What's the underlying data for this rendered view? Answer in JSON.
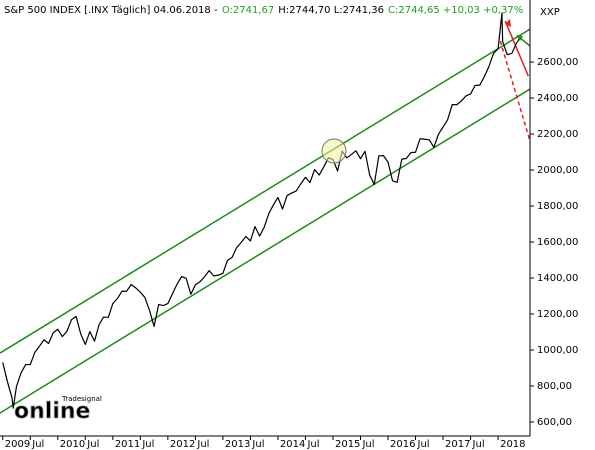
{
  "chart_data": {
    "type": "line",
    "title": "S&P 500 INDEX [.INX Täglich] 04.06.2018 -",
    "quote_parts": [
      {
        "text": "O:2741,67",
        "color": "#22a022"
      },
      {
        "text": "H:2744,70 L:2741,36",
        "color": "#000000"
      },
      {
        "text": "C:2744,65 +10,03 +0,37%",
        "color": "#22a022"
      }
    ],
    "axis_label": "XXP",
    "watermark": {
      "small": "Tradesignal",
      "big": "online"
    },
    "series": [
      {
        "color": "#000000",
        "x": [
          2009.0,
          2009.083,
          2009.167,
          2009.19,
          2009.25,
          2009.333,
          2009.417,
          2009.5,
          2009.583,
          2009.667,
          2009.75,
          2009.833,
          2009.917,
          2010.0,
          2010.083,
          2010.167,
          2010.25,
          2010.333,
          2010.417,
          2010.5,
          2010.583,
          2010.667,
          2010.75,
          2010.833,
          2010.917,
          2011.0,
          2011.083,
          2011.167,
          2011.25,
          2011.333,
          2011.417,
          2011.5,
          2011.583,
          2011.667,
          2011.75,
          2011.833,
          2011.917,
          2012.0,
          2012.083,
          2012.167,
          2012.25,
          2012.333,
          2012.417,
          2012.5,
          2012.583,
          2012.667,
          2012.75,
          2012.833,
          2012.917,
          2013.0,
          2013.083,
          2013.167,
          2013.25,
          2013.333,
          2013.417,
          2013.5,
          2013.583,
          2013.667,
          2013.75,
          2013.833,
          2013.917,
          2014.0,
          2014.083,
          2014.167,
          2014.25,
          2014.333,
          2014.417,
          2014.5,
          2014.583,
          2014.667,
          2014.75,
          2014.833,
          2014.917,
          2015.0,
          2015.083,
          2015.167,
          2015.25,
          2015.333,
          2015.417,
          2015.5,
          2015.583,
          2015.667,
          2015.75,
          2015.833,
          2015.917,
          2016.0,
          2016.083,
          2016.167,
          2016.25,
          2016.333,
          2016.417,
          2016.5,
          2016.583,
          2016.667,
          2016.75,
          2016.833,
          2016.917,
          2017.0,
          2017.083,
          2017.167,
          2017.25,
          2017.333,
          2017.417,
          2017.5,
          2017.583,
          2017.667,
          2017.75,
          2017.833,
          2017.917,
          2018.0,
          2018.07,
          2018.083,
          2018.167,
          2018.25,
          2018.333,
          2018.42
        ],
        "values": [
          931,
          826,
          735,
          677,
          798,
          873,
          919,
          919,
          987,
          1021,
          1057,
          1036,
          1096,
          1115,
          1074,
          1104,
          1169,
          1187,
          1089,
          1031,
          1102,
          1049,
          1141,
          1183,
          1181,
          1258,
          1286,
          1327,
          1326,
          1364,
          1345,
          1321,
          1292,
          1219,
          1131,
          1253,
          1247,
          1258,
          1312,
          1366,
          1408,
          1398,
          1310,
          1362,
          1379,
          1407,
          1441,
          1412,
          1416,
          1426,
          1498,
          1515,
          1569,
          1598,
          1631,
          1606,
          1686,
          1633,
          1682,
          1757,
          1806,
          1848,
          1783,
          1859,
          1872,
          1884,
          1924,
          1960,
          1931,
          2003,
          1972,
          2018,
          2068,
          2059,
          1995,
          2105,
          2068,
          2086,
          2107,
          2063,
          2104,
          1972,
          1920,
          2079,
          2080,
          2044,
          1940,
          1932,
          2060,
          2065,
          2097,
          2099,
          2174,
          2171,
          2168,
          2126,
          2199,
          2239,
          2279,
          2364,
          2363,
          2384,
          2412,
          2423,
          2470,
          2472,
          2519,
          2575,
          2648,
          2674,
          2872,
          2714,
          2641,
          2648,
          2705,
          2744.65
        ]
      }
    ],
    "trend_lines": [
      {
        "color": "#1a8c1a",
        "dashed": false,
        "x": [
          2008.95,
          2018.58
        ],
        "values": [
          983,
          2783
        ]
      },
      {
        "color": "#1a8c1a",
        "dashed": false,
        "x": [
          2008.95,
          2018.58
        ],
        "values": [
          650,
          2450
        ]
      },
      {
        "color": "#e02020",
        "dashed": false,
        "x": [
          2018.13,
          2018.55
        ],
        "values": [
          2828,
          2522
        ]
      },
      {
        "color": "#e02020",
        "dashed": true,
        "x": [
          2018.04,
          2018.58
        ],
        "values": [
          2717,
          2161
        ]
      }
    ],
    "xlim": [
      2008.95,
      2018.58
    ],
    "ylim": [
      522,
      2945
    ],
    "xticks": [
      2009,
      {
        "value": 2009.5,
        "label": "Jul"
      },
      2010,
      {
        "value": 2010.5,
        "label": "Jul"
      },
      2011,
      {
        "value": 2011.5,
        "label": "Jul"
      },
      2012,
      {
        "value": 2012.5,
        "label": "Jul"
      },
      2013,
      {
        "value": 2013.5,
        "label": "Jul"
      },
      2014,
      {
        "value": 2014.5,
        "label": "Jul"
      },
      2015,
      {
        "value": 2015.5,
        "label": "Jul"
      },
      2016,
      {
        "value": 2016.5,
        "label": "Jul"
      },
      2017,
      {
        "value": 2017.5,
        "label": "Jul"
      },
      2018
    ],
    "yticks": [
      {
        "value": 600,
        "label": "600,00"
      },
      {
        "value": 800,
        "label": "800,00"
      },
      {
        "value": 1000,
        "label": "1000,00"
      },
      {
        "value": 1200,
        "label": "1200,00"
      },
      {
        "value": 1400,
        "label": "1400,00"
      },
      {
        "value": 1600,
        "label": "1600,00"
      },
      {
        "value": 1800,
        "label": "1800,00"
      },
      {
        "value": 2000,
        "label": "2000,00"
      },
      {
        "value": 2200,
        "label": "2200,00"
      },
      {
        "value": 2400,
        "label": "2400,00"
      },
      {
        "value": 2600,
        "label": "2600,00"
      }
    ],
    "grid": false
  }
}
